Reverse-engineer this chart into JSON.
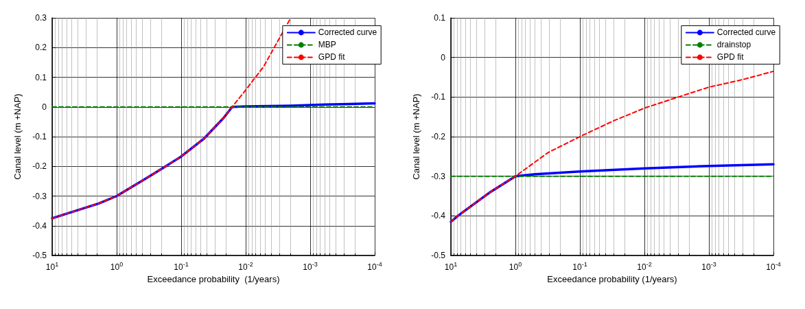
{
  "chart_data": [
    {
      "type": "line",
      "xlabel": "Exceedance probability  (1/years)",
      "ylabel": "Canal level (m +NAP)",
      "log": "x",
      "grid": true,
      "legend": "top right",
      "marker": "none",
      "xlim": [
        10,
        0.0001
      ],
      "xticks": [
        {
          "value": 10,
          "label": "10$^{1}$"
        },
        {
          "value": 1,
          "label": "10$^{0}$"
        },
        {
          "value": 0.1,
          "label": "10$^{-1}$"
        },
        {
          "value": 0.01,
          "label": "10$^{-2}$"
        },
        {
          "value": 0.001,
          "label": "10$^{-3}$"
        },
        {
          "value": 0.0001,
          "label": "10$^{-4}$"
        }
      ],
      "ylim": [
        -0.5,
        0.3
      ],
      "yticks": [
        -0.5,
        -0.4,
        -0.3,
        -0.2,
        -0.1,
        0,
        0.1,
        0.2,
        0.3
      ],
      "series": [
        {
          "name": "Corrected curve",
          "color": "#0000ff",
          "line_style": "solid",
          "x": [
            10,
            1.9,
            1,
            0.42,
            0.206,
            0.1,
            0.045,
            0.022,
            0.0162,
            0.01,
            0.002,
            0.0006,
            0.00025,
            0.0001
          ],
          "values": [
            -0.375,
            -0.325,
            -0.3,
            -0.251,
            -0.21,
            -0.167,
            -0.108,
            -0.037,
            0,
            0.002,
            0.004,
            0.008,
            0.01,
            0.012
          ]
        },
        {
          "name": "MBP",
          "color": "#008000",
          "line_style": "dashed",
          "x": [
            10,
            0.0001
          ],
          "values": [
            0,
            0
          ]
        },
        {
          "name": "GPD fit",
          "color": "#ff0000",
          "line_style": "dashed",
          "x": [
            10,
            1.9,
            1,
            0.42,
            0.206,
            0.1,
            0.045,
            0.022,
            0.0162,
            0.01,
            0.0053,
            0.002
          ],
          "values": [
            -0.375,
            -0.325,
            -0.3,
            -0.251,
            -0.21,
            -0.167,
            -0.108,
            -0.037,
            0,
            0.057,
            0.135,
            0.3
          ]
        }
      ]
    },
    {
      "type": "line",
      "xlabel": "Exceedance probability (1/years)",
      "ylabel": "Canal level (m +NAP)",
      "log": "x",
      "grid": true,
      "legend": "top right",
      "marker": "none",
      "xlim": [
        10,
        0.0001
      ],
      "xticks": [
        {
          "value": 10,
          "label": "10$^{1}$"
        },
        {
          "value": 1,
          "label": "10$^{0}$"
        },
        {
          "value": 0.1,
          "label": "10$^{-1}$"
        },
        {
          "value": 0.01,
          "label": "10$^{-2}$"
        },
        {
          "value": 0.001,
          "label": "10$^{-3}$"
        },
        {
          "value": 0.0001,
          "label": "10$^{-4}$"
        }
      ],
      "ylim": [
        -0.5,
        0.1
      ],
      "yticks": [
        -0.5,
        -0.4,
        -0.3,
        -0.2,
        -0.1,
        0,
        0.1
      ],
      "series": [
        {
          "name": "Corrected curve",
          "color": "#0000ff",
          "line_style": "solid",
          "x": [
            10,
            7.5,
            2.4,
            1,
            0.5,
            0.1,
            0.01,
            0.001,
            0.0001
          ],
          "values": [
            -0.415,
            -0.398,
            -0.339,
            -0.3,
            -0.295,
            -0.288,
            -0.28,
            -0.274,
            -0.27
          ]
        },
        {
          "name": "drainstop",
          "color": "#008000",
          "line_style": "dashed",
          "x": [
            10,
            0.0001
          ],
          "values": [
            -0.3,
            -0.3
          ]
        },
        {
          "name": "GPD fit",
          "color": "#ff0000",
          "line_style": "dashed",
          "x": [
            10,
            7.5,
            2.4,
            1,
            0.31,
            0.1,
            0.03,
            0.01,
            0.003,
            0.001,
            0.0003,
            0.0001
          ],
          "values": [
            -0.415,
            -0.398,
            -0.339,
            -0.3,
            -0.24,
            -0.2,
            -0.16,
            -0.128,
            -0.1,
            -0.075,
            -0.056,
            -0.035
          ]
        }
      ]
    }
  ]
}
